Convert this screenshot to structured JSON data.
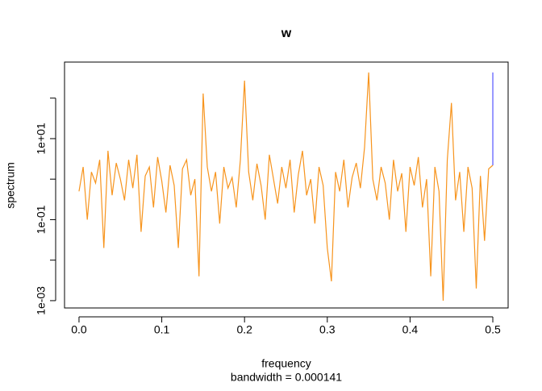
{
  "chart_data": {
    "type": "line",
    "title": "w",
    "x_label": "frequency",
    "subtitle": "bandwidth = 0.000141",
    "y_label": "spectrum",
    "log_y": true,
    "xlim": [
      -0.0175,
      0.5185
    ],
    "ylim": [
      0.00066,
      776
    ],
    "xticks": [
      {
        "value": 0,
        "label": "0.0"
      },
      0.1,
      0.2,
      0.3,
      0.4,
      0.5
    ],
    "yticks": [
      {
        "value": 0.001,
        "label": "1e-03"
      },
      {
        "value": 0.1,
        "label": "1e-01"
      },
      {
        "value": 10,
        "label": "1e+01"
      }
    ],
    "minor_yticks": [
      0.01,
      1,
      100
    ],
    "series": [
      {
        "color": "#f7941d",
        "x": [
          0,
          0.005,
          0.01,
          0.015,
          0.02,
          0.025,
          0.03,
          0.035,
          0.04,
          0.045,
          0.05,
          0.055,
          0.06,
          0.065,
          0.07,
          0.075,
          0.08,
          0.085,
          0.09,
          0.095,
          0.1,
          0.105,
          0.11,
          0.115,
          0.12,
          0.125,
          0.13,
          0.135,
          0.14,
          0.145,
          0.15,
          0.155,
          0.16,
          0.165,
          0.17,
          0.175,
          0.18,
          0.185,
          0.19,
          0.195,
          0.2,
          0.205,
          0.21,
          0.215,
          0.22,
          0.225,
          0.23,
          0.235,
          0.24,
          0.245,
          0.25,
          0.255,
          0.26,
          0.265,
          0.27,
          0.275,
          0.28,
          0.285,
          0.29,
          0.295,
          0.3,
          0.305,
          0.31,
          0.315,
          0.32,
          0.325,
          0.33,
          0.335,
          0.34,
          0.345,
          0.35,
          0.355,
          0.36,
          0.365,
          0.37,
          0.375,
          0.38,
          0.385,
          0.39,
          0.395,
          0.4,
          0.405,
          0.41,
          0.415,
          0.42,
          0.425,
          0.43,
          0.435,
          0.44,
          0.445,
          0.45,
          0.455,
          0.46,
          0.465,
          0.47,
          0.475,
          0.48,
          0.485,
          0.49,
          0.495,
          0.5
        ],
        "values": [
          0.5,
          2,
          0.1,
          1.5,
          0.8,
          3,
          0.02,
          5,
          0.4,
          2.5,
          1,
          0.3,
          3,
          0.6,
          4,
          0.05,
          1.2,
          2,
          0.2,
          3.5,
          0.9,
          0.15,
          2.2,
          0.7,
          0.02,
          1.8,
          3,
          0.4,
          1,
          0.004,
          130,
          2,
          0.5,
          1.5,
          0.08,
          2,
          0.6,
          1.1,
          0.2,
          3,
          270,
          1.5,
          0.3,
          2.4,
          0.7,
          0.1,
          4,
          1,
          0.25,
          2,
          0.6,
          3,
          0.15,
          1.3,
          5,
          0.4,
          1,
          0.08,
          2,
          0.7,
          0.02,
          0.003,
          1.5,
          0.5,
          3,
          0.2,
          1.1,
          2.5,
          0.6,
          6,
          430,
          1,
          0.3,
          2,
          0.8,
          0.1,
          3,
          0.5,
          1.4,
          0.05,
          2,
          0.7,
          3.5,
          0.2,
          1,
          0.004,
          2,
          0.5,
          0.001,
          3,
          76,
          0.3,
          1.5,
          0.05,
          2,
          0.6,
          0.002,
          1.2,
          0.03,
          1.8,
          2.2
        ]
      },
      {
        "color": "#5555ff",
        "x": [
          0.5,
          0.5
        ],
        "values": [
          2.2,
          430
        ]
      }
    ]
  }
}
